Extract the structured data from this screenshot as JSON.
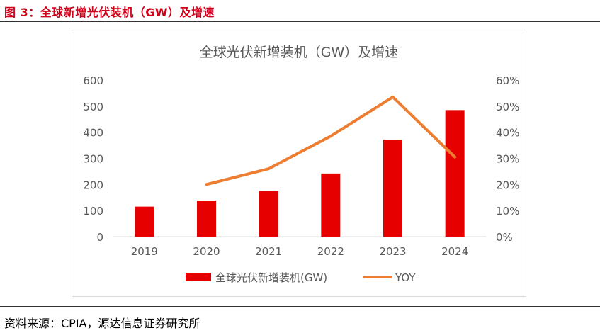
{
  "figure": {
    "caption": "图 3：全球新增光伏装机（GW）及增速",
    "source": "资料来源：CPIA，源达信息证券研究所"
  },
  "colors": {
    "bar": "#e60000",
    "line": "#ed7d31",
    "caption": "#d0021b"
  },
  "chart_data": {
    "type": "bar",
    "title": "全球光伏新增装机（GW）及增速",
    "categories": [
      "2019",
      "2020",
      "2021",
      "2022",
      "2023",
      "2024"
    ],
    "series": [
      {
        "name": "全球光伏新增装机(GW)",
        "type": "bar",
        "axis": "left",
        "values": [
          115,
          138,
          175,
          242,
          372,
          485
        ]
      },
      {
        "name": "YOY",
        "type": "line",
        "axis": "right",
        "values": [
          null,
          0.2,
          0.26,
          0.385,
          0.535,
          0.305
        ]
      }
    ],
    "y_left": {
      "min": 0,
      "max": 600,
      "ticks": [
        0,
        100,
        200,
        300,
        400,
        500,
        600
      ]
    },
    "y_right": {
      "min": 0,
      "max": 0.6,
      "ticks": [
        "0%",
        "10%",
        "20%",
        "30%",
        "40%",
        "50%",
        "60%"
      ]
    },
    "grid": false,
    "legend_position": "bottom"
  }
}
